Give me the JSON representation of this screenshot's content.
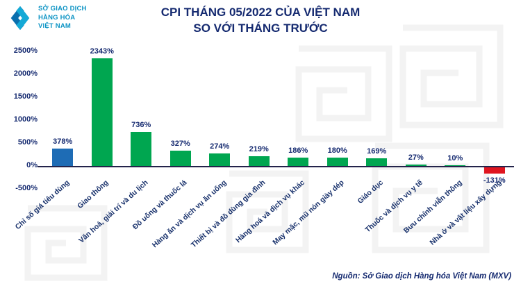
{
  "logo": {
    "line1": "SỞ GIAO DỊCH",
    "line2": "HÀNG HÓA",
    "line3": "VIỆT NAM"
  },
  "title": {
    "line1": "CPI THÁNG 05/2022 CỦA VIỆT NAM",
    "line2": "SO VỚI THÁNG TRƯỚC"
  },
  "source": {
    "text": "Nguồn: Sở Giao dịch Hàng hóa Việt Nam (MXV)"
  },
  "colors": {
    "title_navy": "#152a70",
    "positive_green": "#00a650",
    "first_bar_blue": "#1e6cb5",
    "negative_red": "#e0151f",
    "logo_teal": "#0b93c4",
    "watermark_gray": "#f3f3f3"
  },
  "chart_data": {
    "type": "bar",
    "title": "CPI THÁNG 05/2022 CỦA VIỆT NAM SO VỚI THÁNG TRƯỚC",
    "xlabel": "",
    "ylabel": "",
    "ylim": [
      -500,
      2500
    ],
    "grid": false,
    "legend": "none",
    "categories": [
      "Chỉ số giá tiêu dùng",
      "Giao thông",
      "Văn hoá, giải trí và du lịch",
      "Đồ uống và thuốc lá",
      "Hàng ăn và dịch vụ ăn uống",
      "Thiết bị và đồ dùng gia đình",
      "Hàng hoá và dịch vụ khác",
      "May mặc, mũ nón giày dép",
      "Giáo dục",
      "Thuốc và dịch vụ y tế",
      "Bưu chính viễn thông",
      "Nhà ở và vật liệu xây dựng"
    ],
    "values": [
      378,
      2343,
      736,
      327,
      274,
      219,
      186,
      180,
      169,
      27,
      10,
      -131
    ],
    "value_labels": [
      "378%",
      "2343%",
      "736%",
      "327%",
      "274%",
      "219%",
      "186%",
      "180%",
      "169%",
      "27%",
      "10%",
      "-131%"
    ],
    "bar_colors": [
      "#1e6cb5",
      "#00a650",
      "#00a650",
      "#00a650",
      "#00a650",
      "#00a650",
      "#00a650",
      "#00a650",
      "#00a650",
      "#00a650",
      "#00a650",
      "#e0151f"
    ],
    "y_ticks": [
      {
        "value": 2500,
        "label": "2500%"
      },
      {
        "value": 2000,
        "label": "2000%"
      },
      {
        "value": 1500,
        "label": "1500%"
      },
      {
        "value": 1000,
        "label": "1000%"
      },
      {
        "value": 500,
        "label": "500%"
      },
      {
        "value": 0,
        "label": "0%"
      },
      {
        "value": -500,
        "label": "-500%"
      }
    ]
  }
}
